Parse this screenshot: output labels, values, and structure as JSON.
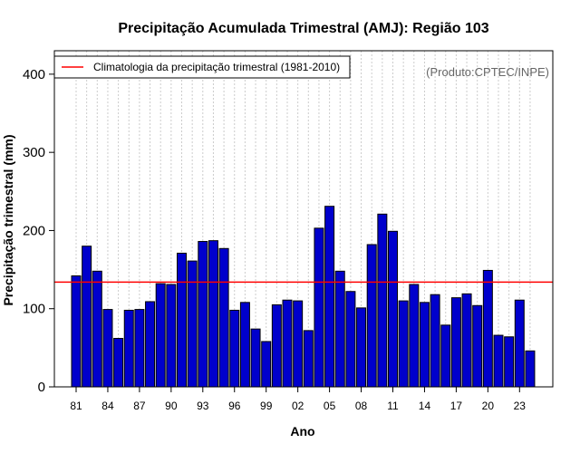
{
  "chart_data": {
    "type": "bar",
    "title": "Precipitação Acumulada Trimestral (AMJ): Região 103",
    "xlabel": "Ano",
    "ylabel": "Precipitação trimestral (mm)",
    "ylim": [
      0,
      430
    ],
    "yticks": [
      0,
      100,
      200,
      300,
      400
    ],
    "grid": true,
    "legend_position": "top-left",
    "annotation": "(Produto:CPTEC/INPE)",
    "categories": [
      "1981",
      "1982",
      "1983",
      "1984",
      "1985",
      "1986",
      "1987",
      "1988",
      "1989",
      "1990",
      "1991",
      "1992",
      "1993",
      "1994",
      "1995",
      "1996",
      "1997",
      "1998",
      "1999",
      "2000",
      "2001",
      "2002",
      "2003",
      "2004",
      "2005",
      "2006",
      "2007",
      "2008",
      "2009",
      "2010",
      "2011",
      "2012",
      "2013",
      "2014",
      "2015",
      "2016",
      "2017",
      "2018",
      "2019",
      "2020",
      "2021",
      "2022",
      "2023",
      "2024"
    ],
    "xtick_labels": [
      {
        "index": 0,
        "label": "81"
      },
      {
        "index": 3,
        "label": "84"
      },
      {
        "index": 6,
        "label": "87"
      },
      {
        "index": 9,
        "label": "90"
      },
      {
        "index": 12,
        "label": "93"
      },
      {
        "index": 15,
        "label": "96"
      },
      {
        "index": 18,
        "label": "99"
      },
      {
        "index": 21,
        "label": "02"
      },
      {
        "index": 24,
        "label": "05"
      },
      {
        "index": 27,
        "label": "08"
      },
      {
        "index": 30,
        "label": "11"
      },
      {
        "index": 33,
        "label": "14"
      },
      {
        "index": 36,
        "label": "17"
      },
      {
        "index": 39,
        "label": "20"
      },
      {
        "index": 42,
        "label": "23"
      }
    ],
    "series": [
      {
        "name": "Precipitação trimestral",
        "color": "#0000cc",
        "values": [
          142,
          180,
          148,
          99,
          62,
          98,
          99,
          109,
          132,
          131,
          171,
          161,
          186,
          187,
          177,
          98,
          108,
          74,
          58,
          105,
          111,
          110,
          72,
          203,
          231,
          148,
          122,
          101,
          182,
          221,
          199,
          110,
          131,
          108,
          118,
          79,
          114,
          119,
          104,
          149,
          66,
          64,
          111,
          46
        ]
      }
    ],
    "reference_line": {
      "name": "Climatologia da precipitação trimestral (1981-2010)",
      "value": 134,
      "color": "#ff0000"
    }
  }
}
